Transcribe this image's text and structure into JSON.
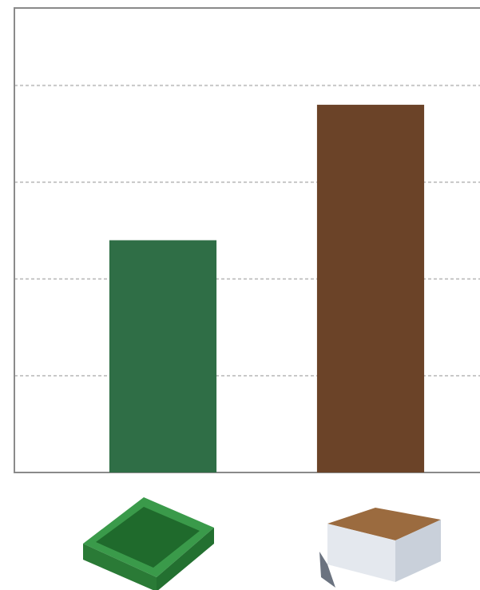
{
  "chart_data": {
    "type": "bar",
    "categories": [
      null,
      null
    ],
    "values": [
      2.4,
      3.8
    ],
    "colors": [
      "#2f6e46",
      "#6b4328"
    ],
    "ylim": [
      0,
      4.8
    ],
    "yticks": [
      1,
      2,
      3,
      4
    ],
    "grid": true
  }
}
